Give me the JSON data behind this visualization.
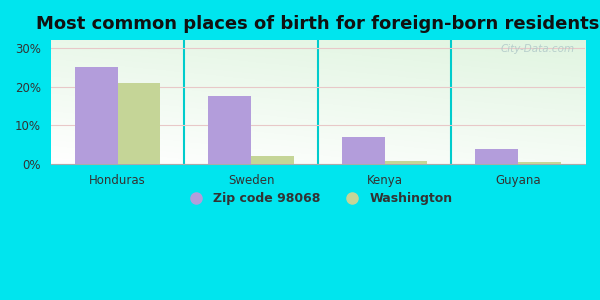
{
  "title": "Most common places of birth for foreign-born residents",
  "categories": [
    "Honduras",
    "Sweden",
    "Kenya",
    "Guyana"
  ],
  "zip_values": [
    25.0,
    17.5,
    7.0,
    4.0
  ],
  "wa_values": [
    21.0,
    2.2,
    0.8,
    0.5
  ],
  "zip_color": "#b39ddb",
  "wa_color": "#c5d597",
  "background_outer": "#00e5ee",
  "ylim": [
    0,
    32
  ],
  "yticks": [
    0,
    10,
    20,
    30
  ],
  "yticklabels": [
    "0%",
    "10%",
    "20%",
    "30%"
  ],
  "legend_zip_label": "Zip code 98068",
  "legend_wa_label": "Washington",
  "bar_width": 0.32,
  "title_fontsize": 13,
  "tick_fontsize": 8.5,
  "legend_fontsize": 9,
  "grid_color": "#d0e8d0",
  "separator_color": "#00cccc"
}
